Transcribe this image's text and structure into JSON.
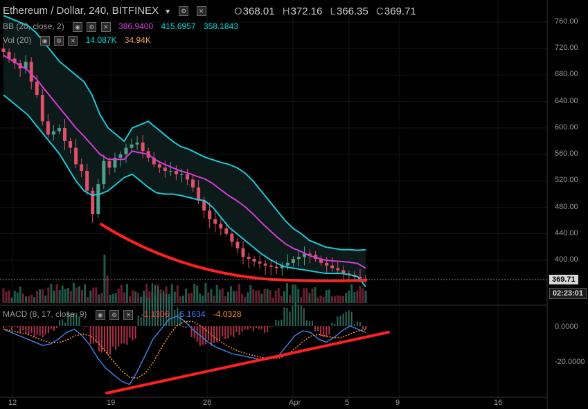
{
  "header": {
    "symbol": "Ethereum / Dollar, 240, BITFINEX",
    "ohlc": [
      {
        "key": "O",
        "value": "368.01"
      },
      {
        "key": "H",
        "value": "372.16"
      },
      {
        "key": "L",
        "value": "366.35"
      },
      {
        "key": "C",
        "value": "369.71"
      }
    ]
  },
  "indicators": {
    "bb": {
      "label": "BB (20, close, 2)",
      "values": [
        "386.9400",
        "415.6957",
        "358.1843"
      ],
      "colors": [
        "#e040e0",
        "#00e0e0",
        "#00e0e0"
      ]
    },
    "vol": {
      "label": "Vol (20)",
      "values": [
        "14.087K",
        "34.94K"
      ],
      "colors": [
        "#00e0e0",
        "#f0a050"
      ]
    },
    "macd": {
      "label": "MACD (8, 17, close, 9)",
      "values": [
        "-1.1306",
        "-5.1634",
        "-4.0328"
      ],
      "colors": [
        "#ff4040",
        "#4080ff",
        "#ff8c20"
      ]
    }
  },
  "tags": {
    "last_price": "369.71",
    "countdown": "02:23:01"
  },
  "colors": {
    "up": "#4f9f8a",
    "down": "#e0506b",
    "bb_band": "#1cc8d8",
    "bb_mid": "#d83ad8",
    "trend": "#ff2020",
    "macd": "#3a7fe0",
    "signal": "#ff8c20"
  },
  "chart_data": {
    "type": "candlestick",
    "y_axis": {
      "ticks": [
        "760.00",
        "720.00",
        "680.00",
        "640.00",
        "600.00",
        "560.00",
        "520.00",
        "480.00",
        "440.00",
        "400.00"
      ],
      "range": [
        340,
        775
      ]
    },
    "macd_axis": {
      "ticks": [
        "0.0000",
        "-20.0000"
      ]
    },
    "x_axis": {
      "ticks": [
        "12",
        "19",
        "26",
        "Apr",
        "5",
        "9",
        "16"
      ]
    },
    "close_series": [
      715,
      705,
      698,
      690,
      700,
      670,
      650,
      610,
      590,
      595,
      600,
      580,
      570,
      545,
      535,
      505,
      470,
      515,
      550,
      540,
      555,
      560,
      570,
      575,
      578,
      565,
      555,
      545,
      540,
      535,
      535,
      530,
      530,
      522,
      510,
      490,
      475,
      462,
      455,
      448,
      440,
      428,
      418,
      405,
      402,
      398,
      395,
      392,
      390,
      388,
      392,
      396,
      402,
      405,
      410,
      408,
      402,
      396,
      392,
      388,
      385,
      380,
      378,
      375,
      372,
      370
    ],
    "bb_upper": [
      770,
      765,
      760,
      755,
      745,
      730,
      715,
      700,
      690,
      680,
      670,
      650,
      620,
      600,
      590,
      580,
      600,
      605,
      610,
      600,
      590,
      580,
      572,
      568,
      562,
      556,
      552,
      548,
      545,
      540,
      532,
      520,
      505,
      490,
      475,
      460,
      448,
      440,
      430,
      425,
      420,
      418,
      416,
      416,
      415,
      416
    ],
    "bb_lower": [
      650,
      640,
      630,
      620,
      605,
      590,
      575,
      560,
      540,
      520,
      505,
      498,
      500,
      505,
      515,
      525,
      530,
      520,
      510,
      502,
      500,
      500,
      498,
      495,
      492,
      490,
      480,
      465,
      450,
      440,
      430,
      420,
      410,
      402,
      395,
      390,
      388,
      386,
      384,
      382,
      380,
      380,
      380,
      378,
      375,
      360
    ],
    "trend_lines": [
      {
        "pane": "price",
        "from": {
          "x": "Mar 18",
          "y": 455
        },
        "to": {
          "x": "Apr 6",
          "y": 396
        }
      },
      {
        "pane": "macd",
        "from": {
          "x": "Mar 18",
          "y": -37
        },
        "to": {
          "x": "Apr 8",
          "y": -1
        }
      }
    ]
  }
}
